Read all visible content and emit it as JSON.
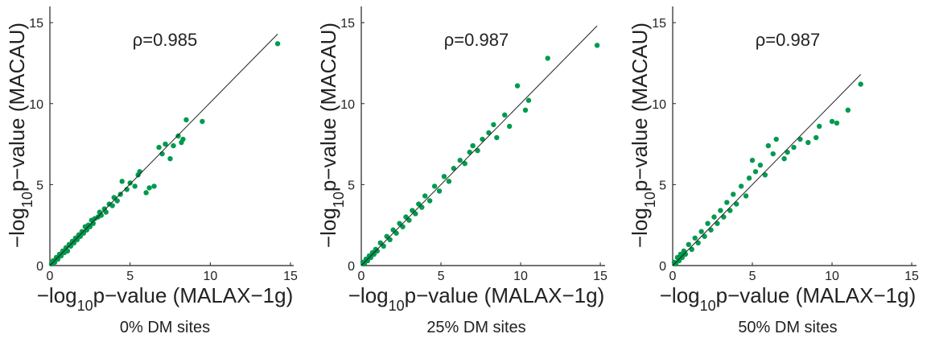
{
  "chart_data": [
    {
      "type": "scatter",
      "annotation": "ρ=0.985",
      "caption": "0% DM sites",
      "xlabel": [
        "−log",
        "10",
        "p−value (MALAX−1g)"
      ],
      "ylabel": [
        "−log",
        "10",
        "p−value (MACAU)"
      ],
      "color": "#009a4e",
      "xlim": [
        0,
        15.2
      ],
      "ylim": [
        0,
        16
      ],
      "xticks": [
        0,
        5,
        10,
        15
      ],
      "yticks": [
        0,
        5,
        10,
        15
      ],
      "fit_line": {
        "x": [
          0,
          14.2
        ],
        "y": [
          0,
          14.3
        ]
      },
      "x": [
        0.1,
        0.2,
        0.3,
        0.4,
        0.5,
        0.6,
        0.7,
        0.8,
        0.9,
        1.0,
        1.1,
        1.2,
        1.3,
        1.4,
        1.5,
        1.6,
        1.7,
        1.8,
        1.9,
        2.0,
        2.1,
        2.2,
        2.3,
        2.4,
        2.5,
        2.6,
        2.7,
        2.8,
        3.0,
        3.1,
        3.2,
        3.4,
        3.5,
        3.7,
        3.9,
        4.0,
        4.2,
        4.4,
        4.5,
        4.8,
        5.0,
        5.3,
        5.5,
        5.6,
        6.0,
        6.2,
        6.5,
        6.8,
        7.0,
        7.2,
        7.5,
        7.7,
        8.0,
        8.2,
        8.5,
        8.3,
        9.5,
        14.2
      ],
      "values": [
        0.1,
        0.3,
        0.2,
        0.5,
        0.4,
        0.7,
        0.6,
        0.9,
        0.8,
        1.1,
        0.9,
        1.3,
        1.2,
        1.5,
        1.4,
        1.7,
        1.6,
        1.9,
        1.8,
        2.1,
        2.0,
        2.4,
        2.2,
        2.5,
        2.4,
        2.8,
        2.6,
        2.9,
        3.0,
        3.3,
        3.1,
        3.5,
        3.3,
        3.8,
        3.7,
        4.2,
        4.0,
        4.4,
        5.2,
        4.7,
        5.1,
        4.9,
        5.6,
        5.8,
        4.5,
        4.8,
        4.9,
        7.3,
        6.9,
        7.5,
        6.6,
        7.4,
        8.0,
        7.6,
        9.0,
        7.8,
        8.9,
        13.7
      ]
    },
    {
      "type": "scatter",
      "annotation": "ρ=0.987",
      "caption": "25% DM sites",
      "xlabel": [
        "−log",
        "10",
        "p−value (MALAX−1g)"
      ],
      "ylabel": [
        "−log",
        "10",
        "p−value (MACAU)"
      ],
      "color": "#009a4e",
      "xlim": [
        0,
        15.3
      ],
      "ylim": [
        0,
        16
      ],
      "xticks": [
        0,
        5,
        10,
        15
      ],
      "yticks": [
        0,
        5,
        10,
        15
      ],
      "fit_line": {
        "x": [
          0,
          14.8
        ],
        "y": [
          0,
          14.8
        ]
      },
      "x": [
        0.1,
        0.2,
        0.3,
        0.4,
        0.5,
        0.6,
        0.7,
        0.8,
        0.9,
        1.0,
        1.2,
        1.4,
        1.6,
        1.8,
        2.0,
        2.2,
        2.4,
        2.6,
        2.8,
        3.0,
        3.2,
        3.4,
        3.6,
        3.8,
        4.0,
        4.3,
        4.6,
        4.9,
        5.2,
        5.5,
        5.8,
        6.2,
        6.5,
        6.8,
        7.0,
        7.3,
        7.6,
        8.0,
        8.3,
        8.5,
        9.0,
        9.3,
        9.8,
        10.5,
        10.3,
        11.7,
        14.8
      ],
      "values": [
        0.2,
        0.1,
        0.4,
        0.3,
        0.6,
        0.5,
        0.8,
        0.7,
        1.0,
        0.9,
        1.4,
        1.2,
        1.8,
        1.6,
        2.2,
        2.0,
        2.6,
        2.4,
        3.0,
        2.8,
        3.4,
        3.2,
        3.8,
        3.6,
        4.3,
        4.0,
        4.9,
        4.6,
        5.5,
        5.2,
        6.0,
        6.5,
        6.3,
        7.0,
        7.4,
        7.1,
        7.8,
        8.2,
        8.7,
        7.9,
        9.3,
        8.6,
        11.1,
        10.2,
        9.6,
        12.8,
        13.6
      ]
    },
    {
      "type": "scatter",
      "annotation": "ρ=0.987",
      "caption": "50% DM sites",
      "xlabel": [
        "−log",
        "10",
        "p−value (MALAX−1g)"
      ],
      "ylabel": [
        "−log",
        "10",
        "p−value (MACAU)"
      ],
      "color": "#009a4e",
      "xlim": [
        0,
        15.3
      ],
      "ylim": [
        0,
        16
      ],
      "xticks": [
        0,
        5,
        10,
        15
      ],
      "yticks": [
        0,
        5,
        10,
        15
      ],
      "fit_line": {
        "x": [
          0,
          11.8
        ],
        "y": [
          0,
          11.8
        ]
      },
      "x": [
        0.1,
        0.2,
        0.3,
        0.4,
        0.5,
        0.6,
        0.7,
        0.8,
        1.0,
        1.2,
        1.4,
        1.6,
        1.8,
        2.0,
        2.2,
        2.4,
        2.6,
        2.8,
        3.0,
        3.2,
        3.4,
        3.6,
        3.8,
        4.0,
        4.3,
        4.6,
        4.8,
        5.0,
        5.2,
        5.5,
        5.8,
        6.0,
        6.3,
        6.5,
        7.0,
        7.2,
        7.6,
        8.0,
        8.5,
        9.0,
        9.2,
        10.0,
        10.3,
        11.0,
        11.8
      ],
      "values": [
        0.2,
        0.1,
        0.5,
        0.3,
        0.7,
        0.5,
        0.9,
        0.7,
        1.3,
        1.0,
        1.7,
        1.4,
        2.1,
        1.8,
        2.6,
        2.2,
        3.0,
        2.6,
        3.4,
        3.0,
        3.9,
        3.4,
        4.4,
        3.8,
        4.9,
        4.3,
        5.4,
        6.5,
        5.8,
        6.2,
        5.6,
        7.4,
        6.9,
        7.8,
        6.6,
        7.0,
        7.3,
        7.8,
        7.6,
        7.9,
        8.6,
        8.9,
        8.8,
        9.6,
        11.2
      ]
    }
  ]
}
